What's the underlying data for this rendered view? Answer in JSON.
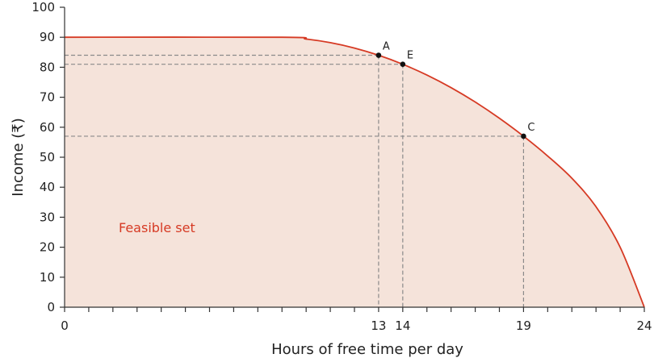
{
  "chart_data": {
    "type": "area",
    "xlabel": "Hours of free time per day",
    "ylabel": "Income (₹)",
    "xlim": [
      0,
      24
    ],
    "ylim": [
      0,
      100
    ],
    "x_ticks": [
      0,
      13,
      14,
      19,
      24
    ],
    "y_ticks": [
      0,
      10,
      20,
      30,
      40,
      50,
      60,
      70,
      80,
      90,
      100
    ],
    "grid": false,
    "region_label": "Feasible set",
    "colors": {
      "curve": "#d63a24",
      "fill": "#f5e3da",
      "guide": "#8a8a8a",
      "axis": "#333333"
    },
    "frontier": [
      {
        "x": 0,
        "y": 90
      },
      {
        "x": 9,
        "y": 90
      },
      {
        "x": 10,
        "y": 89.4
      },
      {
        "x": 11,
        "y": 88.2
      },
      {
        "x": 12,
        "y": 86.4
      },
      {
        "x": 13,
        "y": 84
      },
      {
        "x": 14,
        "y": 81
      },
      {
        "x": 15,
        "y": 77.4
      },
      {
        "x": 16,
        "y": 73.2
      },
      {
        "x": 17,
        "y": 68.4
      },
      {
        "x": 18,
        "y": 63
      },
      {
        "x": 19,
        "y": 57
      },
      {
        "x": 20,
        "y": 50.4
      },
      {
        "x": 21,
        "y": 43
      },
      {
        "x": 22,
        "y": 33.5
      },
      {
        "x": 23,
        "y": 20
      },
      {
        "x": 24,
        "y": 0
      }
    ],
    "points": [
      {
        "label": "A",
        "x": 13,
        "y": 84
      },
      {
        "label": "E",
        "x": 14,
        "y": 81
      },
      {
        "label": "C",
        "x": 19,
        "y": 57
      }
    ]
  }
}
